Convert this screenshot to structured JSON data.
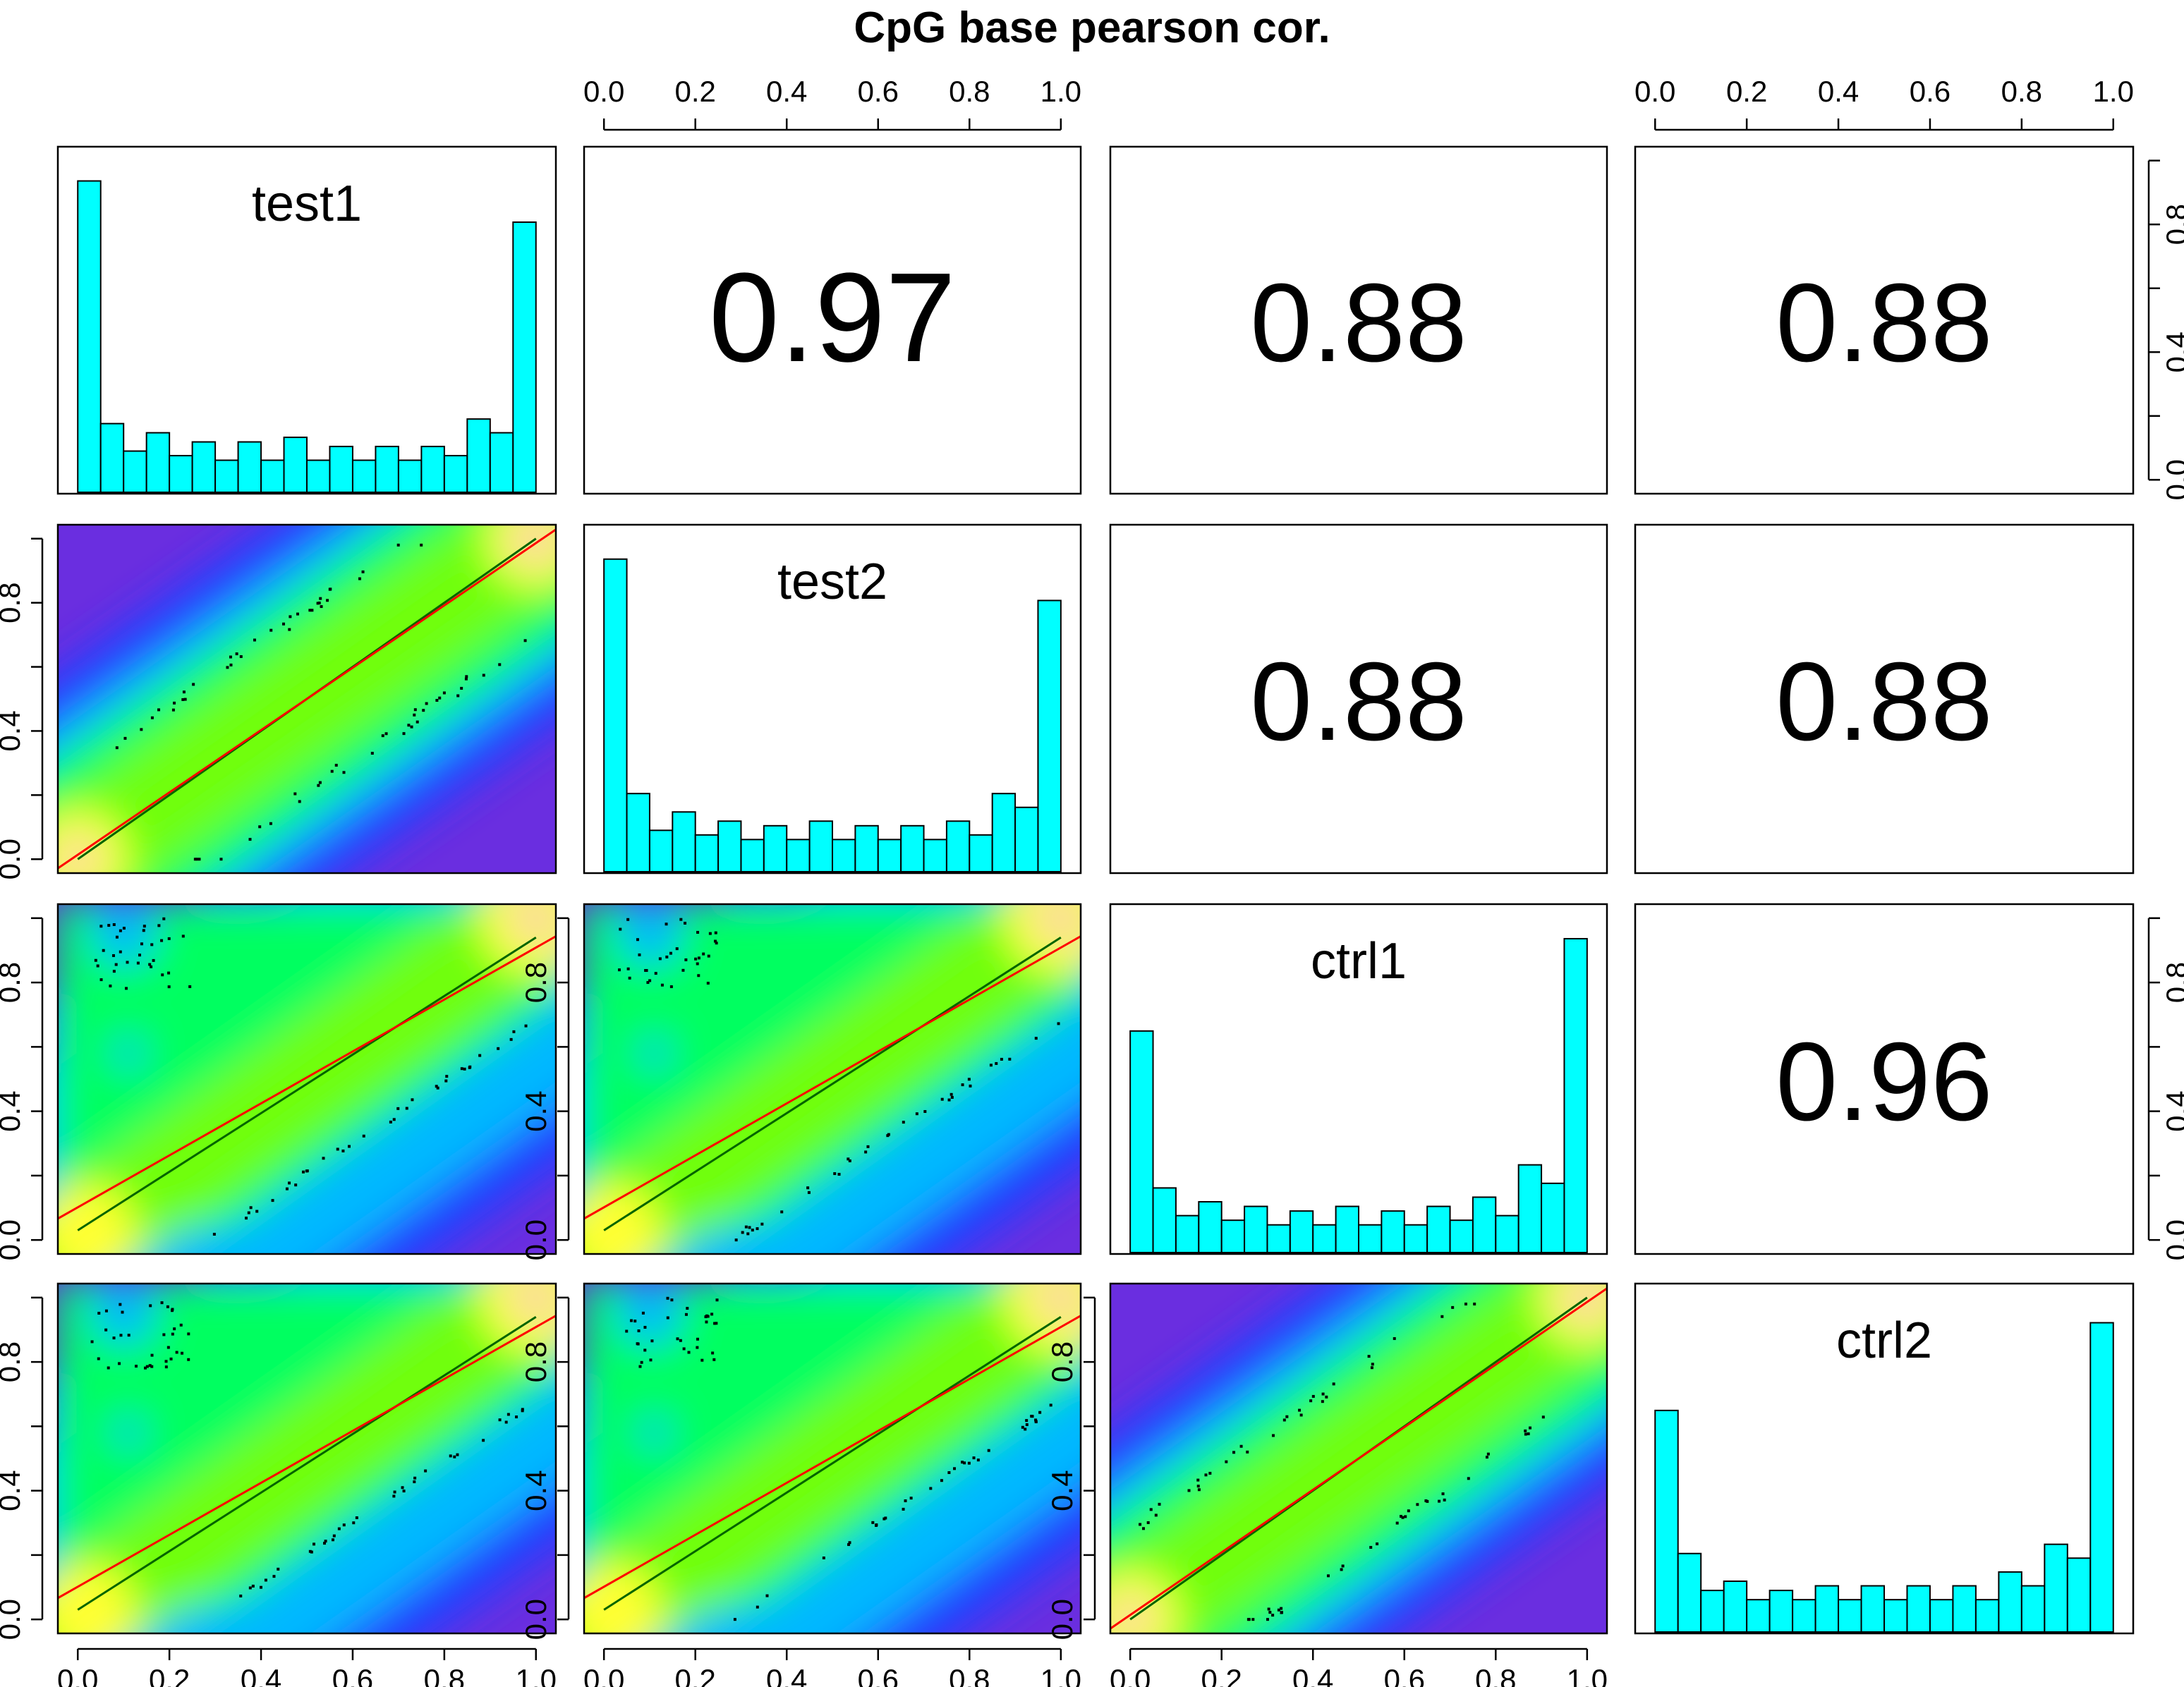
{
  "title": "CpG base pearson cor.",
  "chart_data": {
    "type": "scatter",
    "title": "CpG base pearson cor.",
    "variables": [
      "test1",
      "test2",
      "ctrl1",
      "ctrl2"
    ],
    "axis_ticks": [
      "0.0",
      "0.2",
      "0.4",
      "0.6",
      "0.8",
      "1.0"
    ],
    "xlim": [
      0,
      1
    ],
    "ylim": [
      0,
      1
    ],
    "correlation_matrix": [
      {
        "row": 1,
        "col": 2,
        "value": "0.97"
      },
      {
        "row": 1,
        "col": 3,
        "value": "0.88"
      },
      {
        "row": 1,
        "col": 4,
        "value": "0.88"
      },
      {
        "row": 2,
        "col": 3,
        "value": "0.88"
      },
      {
        "row": 2,
        "col": 4,
        "value": "0.88"
      },
      {
        "row": 3,
        "col": 4,
        "value": "0.96"
      }
    ],
    "histograms": {
      "bin_width": 0.05,
      "test1": [
        0.68,
        0.15,
        0.09,
        0.13,
        0.08,
        0.11,
        0.07,
        0.11,
        0.07,
        0.12,
        0.07,
        0.1,
        0.07,
        0.1,
        0.07,
        0.1,
        0.08,
        0.16,
        0.13,
        0.59
      ],
      "test2": [
        0.68,
        0.17,
        0.09,
        0.13,
        0.08,
        0.11,
        0.07,
        0.1,
        0.07,
        0.11,
        0.07,
        0.1,
        0.07,
        0.1,
        0.07,
        0.11,
        0.08,
        0.17,
        0.14,
        0.59
      ],
      "ctrl1": [
        0.48,
        0.14,
        0.08,
        0.11,
        0.07,
        0.1,
        0.06,
        0.09,
        0.06,
        0.1,
        0.06,
        0.09,
        0.06,
        0.1,
        0.07,
        0.12,
        0.08,
        0.19,
        0.15,
        0.68
      ],
      "ctrl2": [
        0.48,
        0.17,
        0.09,
        0.11,
        0.07,
        0.09,
        0.07,
        0.1,
        0.07,
        0.1,
        0.07,
        0.1,
        0.07,
        0.1,
        0.07,
        0.13,
        0.1,
        0.19,
        0.16,
        0.67
      ]
    },
    "scatter_panels": [
      {
        "row": 2,
        "col": 1,
        "x": "test1",
        "y": "test2",
        "fit_red": [
          0.0,
          1.0
        ],
        "fit_green": [
          0.0,
          1.0
        ]
      },
      {
        "row": 3,
        "col": 1,
        "x": "test1",
        "y": "ctrl1",
        "fit_red": [
          0.09,
          0.92
        ],
        "fit_green": [
          0.03,
          0.94
        ]
      },
      {
        "row": 3,
        "col": 2,
        "x": "test2",
        "y": "ctrl1",
        "fit_red": [
          0.09,
          0.92
        ],
        "fit_green": [
          0.03,
          0.94
        ]
      },
      {
        "row": 4,
        "col": 1,
        "x": "test1",
        "y": "ctrl2",
        "fit_red": [
          0.09,
          0.92
        ],
        "fit_green": [
          0.03,
          0.94
        ]
      },
      {
        "row": 4,
        "col": 2,
        "x": "test2",
        "y": "ctrl2",
        "fit_red": [
          0.09,
          0.92
        ],
        "fit_green": [
          0.03,
          0.94
        ]
      },
      {
        "row": 4,
        "col": 3,
        "x": "ctrl1",
        "y": "ctrl2",
        "fit_red": [
          0.0,
          1.0
        ],
        "fit_green": [
          0.0,
          1.0
        ]
      }
    ],
    "colors": {
      "histogram_fill": "#00FFFF",
      "fit_red": "#FF0000",
      "fit_green": "#006400",
      "density_scale": [
        "#6a2ee0",
        "#2040ff",
        "#00b8ff",
        "#00ff60",
        "#70ff10",
        "#ffff30",
        "#f6d7a3"
      ]
    },
    "grid": false
  }
}
